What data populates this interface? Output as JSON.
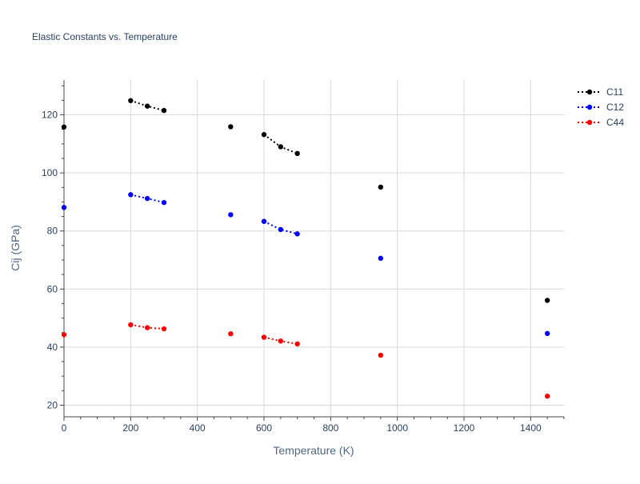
{
  "chart_data": {
    "type": "line",
    "title": "Elastic Constants vs. Temperature",
    "xlabel": "Temperature (K)",
    "ylabel": "Cij (GPa)",
    "xlim": [
      0,
      1500
    ],
    "ylim": [
      16,
      132
    ],
    "xticks": [
      0,
      200,
      400,
      600,
      800,
      1000,
      1200,
      1400
    ],
    "yticks": [
      20,
      40,
      60,
      80,
      100,
      120
    ],
    "grid": true,
    "legend_position": "top-right",
    "series": [
      {
        "name": "C11",
        "color": "#000000",
        "line_style": "dotted",
        "segments": [
          {
            "x": [
              0
            ],
            "y": [
              115.8
            ]
          },
          {
            "x": [
              200,
              250,
              300
            ],
            "y": [
              124.9,
              123.0,
              121.5
            ]
          },
          {
            "x": [
              500
            ],
            "y": [
              115.9
            ]
          },
          {
            "x": [
              600,
              650,
              700
            ],
            "y": [
              113.2,
              109.0,
              106.7
            ]
          },
          {
            "x": [
              950
            ],
            "y": [
              95.1
            ]
          },
          {
            "x": [
              1450
            ],
            "y": [
              56.1
            ]
          }
        ]
      },
      {
        "name": "C12",
        "color": "#0000ff",
        "line_style": "dotted",
        "segments": [
          {
            "x": [
              0
            ],
            "y": [
              88.1
            ]
          },
          {
            "x": [
              200,
              250,
              300
            ],
            "y": [
              92.5,
              91.2,
              89.8
            ]
          },
          {
            "x": [
              500
            ],
            "y": [
              85.6
            ]
          },
          {
            "x": [
              600,
              650,
              700
            ],
            "y": [
              83.3,
              80.5,
              79.0
            ]
          },
          {
            "x": [
              950
            ],
            "y": [
              70.6
            ]
          },
          {
            "x": [
              1450
            ],
            "y": [
              44.7
            ]
          }
        ]
      },
      {
        "name": "C44",
        "color": "#ff0000",
        "line_style": "dotted",
        "segments": [
          {
            "x": [
              0
            ],
            "y": [
              44.3
            ]
          },
          {
            "x": [
              200,
              250,
              300
            ],
            "y": [
              47.7,
              46.7,
              46.3
            ]
          },
          {
            "x": [
              500
            ],
            "y": [
              44.6
            ]
          },
          {
            "x": [
              600,
              650,
              700
            ],
            "y": [
              43.4,
              42.1,
              41.1
            ]
          },
          {
            "x": [
              950
            ],
            "y": [
              37.2
            ]
          },
          {
            "x": [
              1450
            ],
            "y": [
              23.1
            ]
          }
        ]
      }
    ]
  }
}
